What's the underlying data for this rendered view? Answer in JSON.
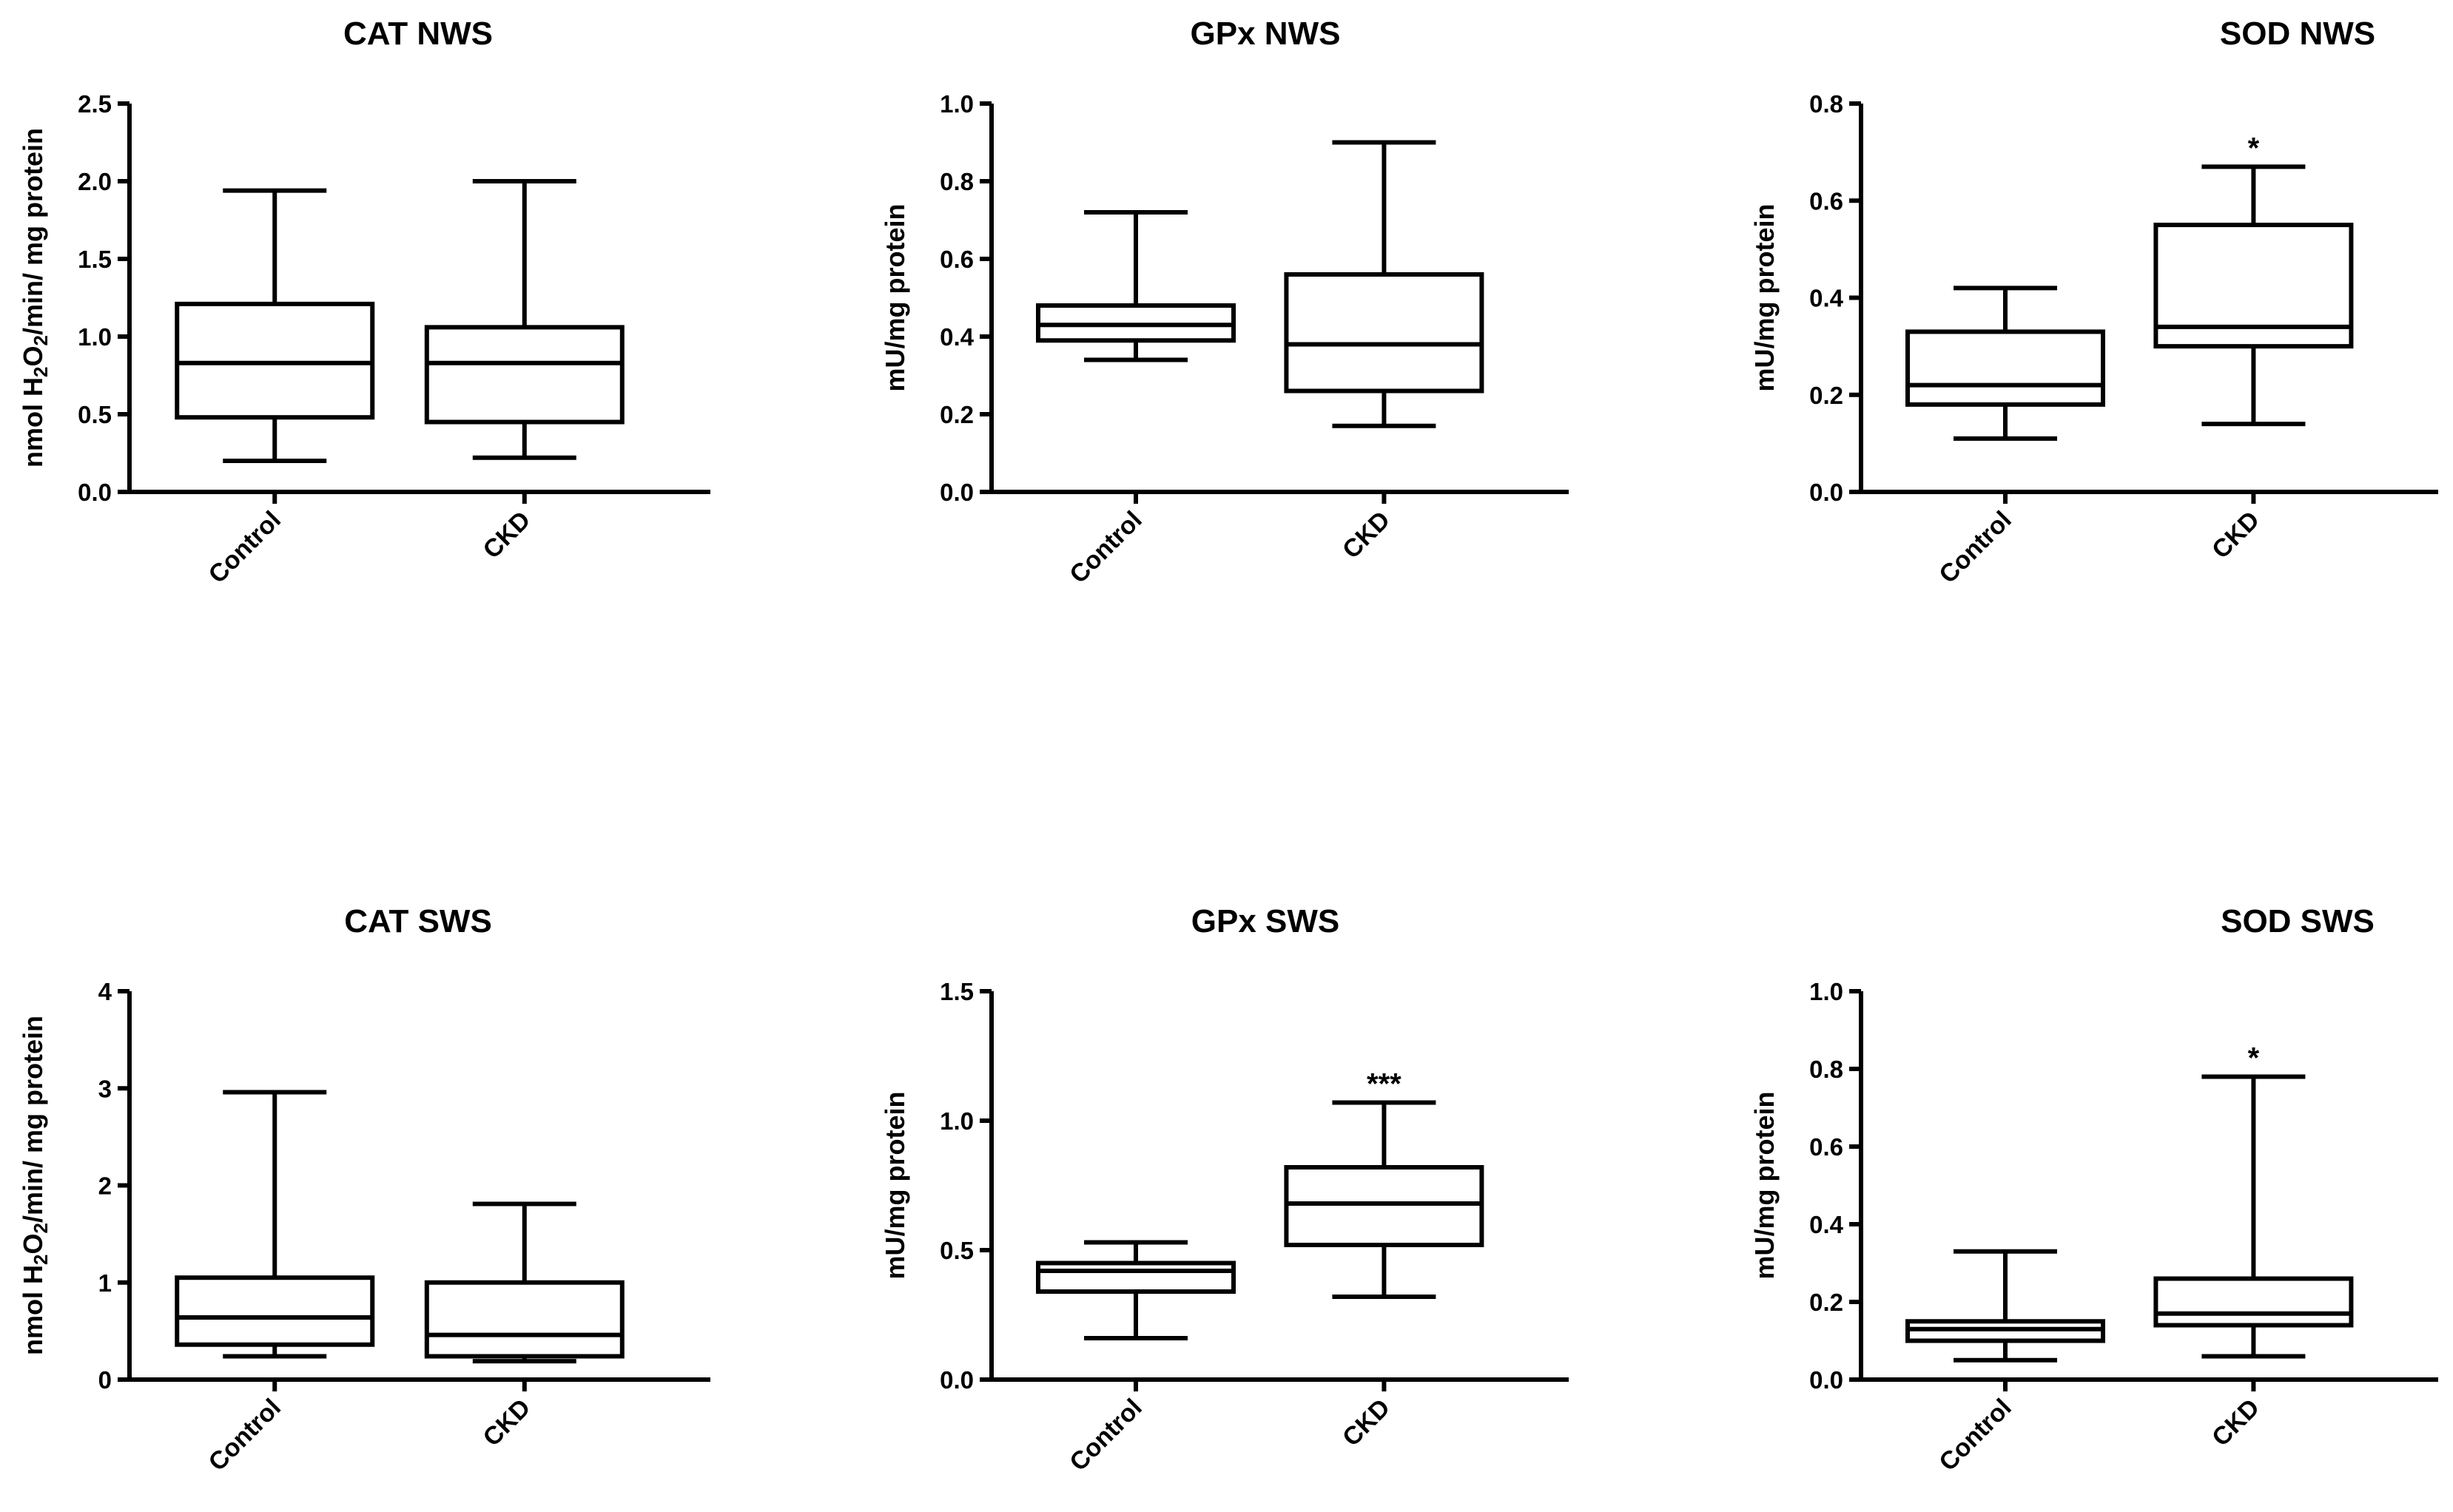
{
  "chart_data": [
    {
      "type": "boxplot",
      "title": "CAT NWS",
      "ylabel": {
        "pre": "nmol H",
        "sub1": "2",
        "mid": "O",
        "sub2": "2",
        "post": "/min/ mg protein"
      },
      "ylim": [
        0,
        2.5
      ],
      "yticks": [
        "0.0",
        "0.5",
        "1.0",
        "1.5",
        "2.0",
        "2.5"
      ],
      "categories": [
        "Control",
        "CKD"
      ],
      "boxes": [
        {
          "min": 0.2,
          "q1": 0.48,
          "median": 0.83,
          "q3": 1.21,
          "max": 1.94,
          "sig": ""
        },
        {
          "min": 0.22,
          "q1": 0.45,
          "median": 0.83,
          "q3": 1.06,
          "max": 2.0,
          "sig": ""
        }
      ]
    },
    {
      "type": "boxplot",
      "title": "GPx NWS",
      "ylabel": {
        "pre": "mU/mg protein"
      },
      "ylim": [
        0,
        1.0
      ],
      "yticks": [
        "0.0",
        "0.2",
        "0.4",
        "0.6",
        "0.8",
        "1.0"
      ],
      "categories": [
        "Control",
        "CKD"
      ],
      "boxes": [
        {
          "min": 0.34,
          "q1": 0.39,
          "median": 0.43,
          "q3": 0.48,
          "max": 0.72,
          "sig": ""
        },
        {
          "min": 0.17,
          "q1": 0.26,
          "median": 0.38,
          "q3": 0.56,
          "max": 0.9,
          "sig": ""
        }
      ]
    },
    {
      "type": "boxplot",
      "title": "SOD NWS",
      "ylabel": {
        "pre": "mU/mg protein"
      },
      "ylim": [
        0,
        0.8
      ],
      "yticks": [
        "0.0",
        "0.2",
        "0.4",
        "0.6",
        "0.8"
      ],
      "categories": [
        "Control",
        "CKD"
      ],
      "boxes": [
        {
          "min": 0.11,
          "q1": 0.18,
          "median": 0.22,
          "q3": 0.33,
          "max": 0.42,
          "sig": ""
        },
        {
          "min": 0.14,
          "q1": 0.3,
          "median": 0.34,
          "q3": 0.55,
          "max": 0.67,
          "sig": "*"
        }
      ]
    },
    {
      "type": "boxplot",
      "title": "CAT SWS",
      "ylabel": {
        "pre": "nmol H",
        "sub1": "2",
        "mid": "O",
        "sub2": "2",
        "post": "/min/ mg protein"
      },
      "ylim": [
        0,
        4
      ],
      "yticks": [
        "0",
        "1",
        "2",
        "3",
        "4"
      ],
      "categories": [
        "Control",
        "CKD"
      ],
      "boxes": [
        {
          "min": 0.24,
          "q1": 0.36,
          "median": 0.64,
          "q3": 1.05,
          "max": 2.96,
          "sig": ""
        },
        {
          "min": 0.19,
          "q1": 0.24,
          "median": 0.46,
          "q3": 1.0,
          "max": 1.81,
          "sig": ""
        }
      ]
    },
    {
      "type": "boxplot",
      "title": "GPx SWS",
      "ylabel": {
        "pre": "mU/mg protein"
      },
      "ylim": [
        0,
        1.5
      ],
      "yticks": [
        "0.0",
        "0.5",
        "1.0",
        "1.5"
      ],
      "categories": [
        "Control",
        "CKD"
      ],
      "boxes": [
        {
          "min": 0.16,
          "q1": 0.34,
          "median": 0.42,
          "q3": 0.45,
          "max": 0.53,
          "sig": ""
        },
        {
          "min": 0.32,
          "q1": 0.52,
          "median": 0.68,
          "q3": 0.82,
          "max": 1.07,
          "sig": "***"
        }
      ]
    },
    {
      "type": "boxplot",
      "title": "SOD SWS",
      "ylabel": {
        "pre": "mU/mg protein"
      },
      "ylim": [
        0,
        1.0
      ],
      "yticks": [
        "0.0",
        "0.2",
        "0.4",
        "0.6",
        "0.8",
        "1.0"
      ],
      "categories": [
        "Control",
        "CKD"
      ],
      "boxes": [
        {
          "min": 0.05,
          "q1": 0.1,
          "median": 0.13,
          "q3": 0.15,
          "max": 0.33,
          "sig": ""
        },
        {
          "min": 0.06,
          "q1": 0.14,
          "median": 0.17,
          "q3": 0.26,
          "max": 0.78,
          "sig": "*"
        }
      ]
    }
  ]
}
